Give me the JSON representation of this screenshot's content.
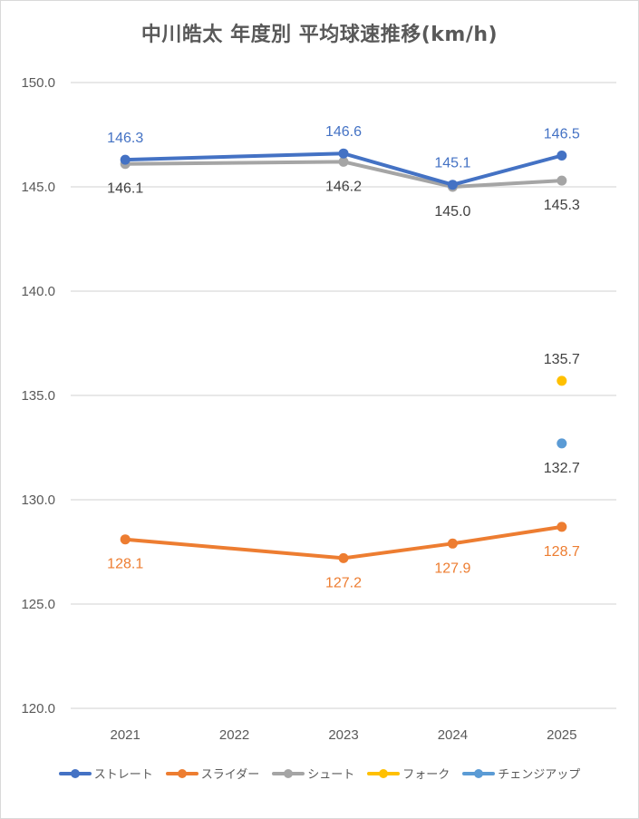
{
  "chart_data": {
    "type": "line",
    "title": "中川皓太 年度別 平均球速推移(km/h)",
    "xlabel": "",
    "ylabel": "",
    "categories": [
      "2021",
      "2022",
      "2023",
      "2024",
      "2025"
    ],
    "ylim": [
      120.0,
      150.0
    ],
    "yticks": [
      "150.0",
      "145.0",
      "140.0",
      "135.0",
      "130.0",
      "125.0",
      "120.0"
    ],
    "ytick_values": [
      150,
      145,
      140,
      135,
      130,
      125,
      120
    ],
    "grid": true,
    "legend_position": "bottom",
    "series": [
      {
        "name": "ストレート",
        "color": "#4472c4",
        "values": [
          146.3,
          null,
          146.6,
          145.1,
          146.5
        ],
        "labels": [
          "146.3",
          null,
          "146.6",
          "145.1",
          "146.5"
        ],
        "label_pos": "above",
        "label_color": "#4472c4"
      },
      {
        "name": "スライダー",
        "color": "#ed7d31",
        "values": [
          128.1,
          null,
          127.2,
          127.9,
          128.7
        ],
        "labels": [
          "128.1",
          null,
          "127.2",
          "127.9",
          "128.7"
        ],
        "label_pos": "below",
        "label_color": "#ed7d31"
      },
      {
        "name": "シュート",
        "color": "#a5a5a5",
        "values": [
          146.1,
          null,
          146.2,
          145.0,
          145.3
        ],
        "labels": [
          "146.1",
          null,
          "146.2",
          "145.0",
          "145.3"
        ],
        "label_pos": "below",
        "label_color": "#404040"
      },
      {
        "name": "フォーク",
        "color": "#ffc000",
        "values": [
          null,
          null,
          null,
          null,
          135.7
        ],
        "labels": [
          null,
          null,
          null,
          null,
          "135.7"
        ],
        "label_pos": "above",
        "label_color": "#404040"
      },
      {
        "name": "チェンジアップ",
        "color": "#5b9bd5",
        "values": [
          null,
          null,
          null,
          null,
          132.7
        ],
        "labels": [
          null,
          null,
          null,
          null,
          "132.7"
        ],
        "label_pos": "below",
        "label_color": "#404040"
      }
    ]
  }
}
